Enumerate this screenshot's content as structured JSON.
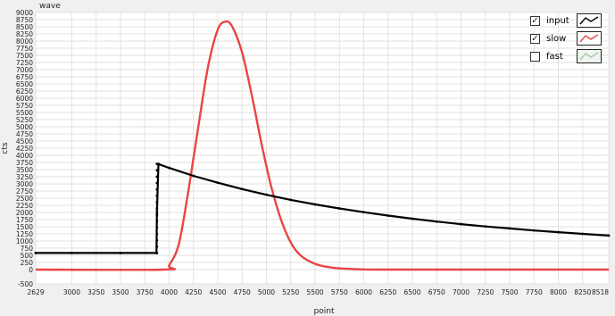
{
  "chart_data": {
    "type": "line",
    "title": "wave",
    "xlabel": "point",
    "ylabel": "cts",
    "xlim": [
      2629,
      8518
    ],
    "ylim": [
      -500,
      9000
    ],
    "xticks": [
      "2629",
      "3000",
      "3250",
      "3500",
      "3750",
      "4000",
      "4250",
      "4500",
      "4750",
      "5000",
      "5250",
      "5500",
      "5750",
      "6000",
      "6250",
      "6500",
      "6750",
      "7000",
      "7250",
      "7500",
      "7750",
      "8000",
      "8250",
      "8518"
    ],
    "yticks": [
      "-500",
      "0",
      "250",
      "500",
      "750",
      "1000",
      "1250",
      "1500",
      "1750",
      "2000",
      "2250",
      "2500",
      "2750",
      "3000",
      "3250",
      "3500",
      "3750",
      "4000",
      "4250",
      "4500",
      "4750",
      "5000",
      "5250",
      "5500",
      "5750",
      "6000",
      "6250",
      "6500",
      "6750",
      "7000",
      "7250",
      "7500",
      "7750",
      "8000",
      "8250",
      "8500",
      "8750",
      "9000"
    ],
    "grid": true,
    "legend_position": "top-right",
    "series": [
      {
        "name": "input",
        "color": "#000000",
        "checked": true,
        "visible": true,
        "markers": true,
        "x": [
          2629,
          3000,
          3500,
          3870,
          3875,
          3890,
          3900,
          4000,
          4250,
          4500,
          4750,
          5000,
          5250,
          5500,
          5750,
          6000,
          6250,
          6500,
          6750,
          7000,
          7250,
          7500,
          7750,
          8000,
          8250,
          8518
        ],
        "y": [
          580,
          580,
          580,
          580,
          2000,
          3700,
          3680,
          3560,
          3280,
          3040,
          2820,
          2620,
          2440,
          2280,
          2140,
          2010,
          1890,
          1780,
          1680,
          1590,
          1510,
          1440,
          1370,
          1310,
          1250,
          1190
        ]
      },
      {
        "name": "slow",
        "color": "#e84545",
        "checked": true,
        "visible": true,
        "markers": false,
        "x": [
          2629,
          3950,
          4000,
          4100,
          4200,
          4300,
          4400,
          4500,
          4580,
          4650,
          4750,
          4850,
          4950,
          5050,
          5150,
          5250,
          5350,
          5500,
          5650,
          5800,
          6000,
          6200,
          6500,
          7000,
          8518
        ],
        "y": [
          0,
          0,
          150,
          900,
          2800,
          5000,
          7100,
          8400,
          8680,
          8500,
          7600,
          6100,
          4400,
          2900,
          1750,
          950,
          500,
          200,
          80,
          30,
          5,
          0,
          0,
          0,
          0
        ]
      },
      {
        "name": "fast",
        "color": "#a8c8a8",
        "checked": false,
        "visible": false,
        "markers": false,
        "x": [],
        "y": []
      }
    ]
  }
}
